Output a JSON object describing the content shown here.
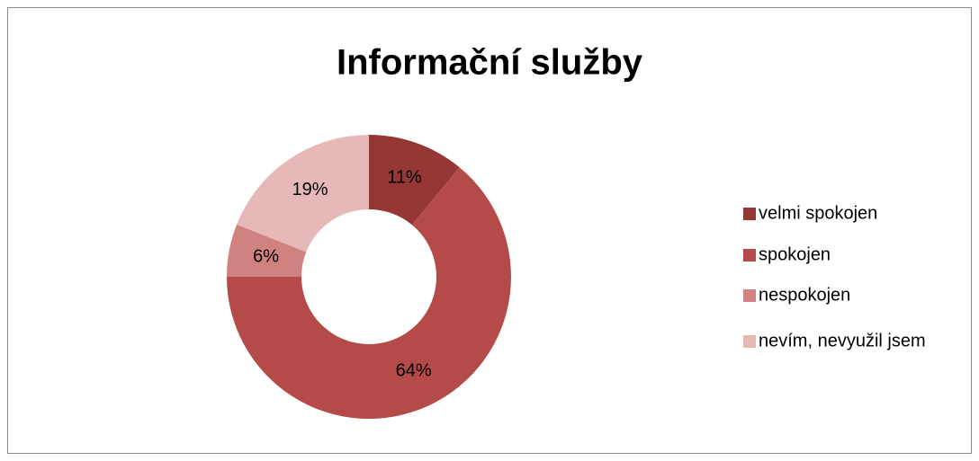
{
  "chart_data": {
    "type": "pie",
    "title": "Informační služby",
    "categories": [
      "velmi spokojen",
      "spokojen",
      "nespokojen",
      "nevím, nevyužil jsem"
    ],
    "values": [
      11,
      64,
      6,
      19
    ],
    "value_labels": [
      "11%",
      "64%",
      "6%",
      "19%"
    ],
    "colors": [
      "#953735",
      "#b44b48",
      "#d08280",
      "#e6b9b8"
    ],
    "donut": true,
    "legend": "right"
  }
}
